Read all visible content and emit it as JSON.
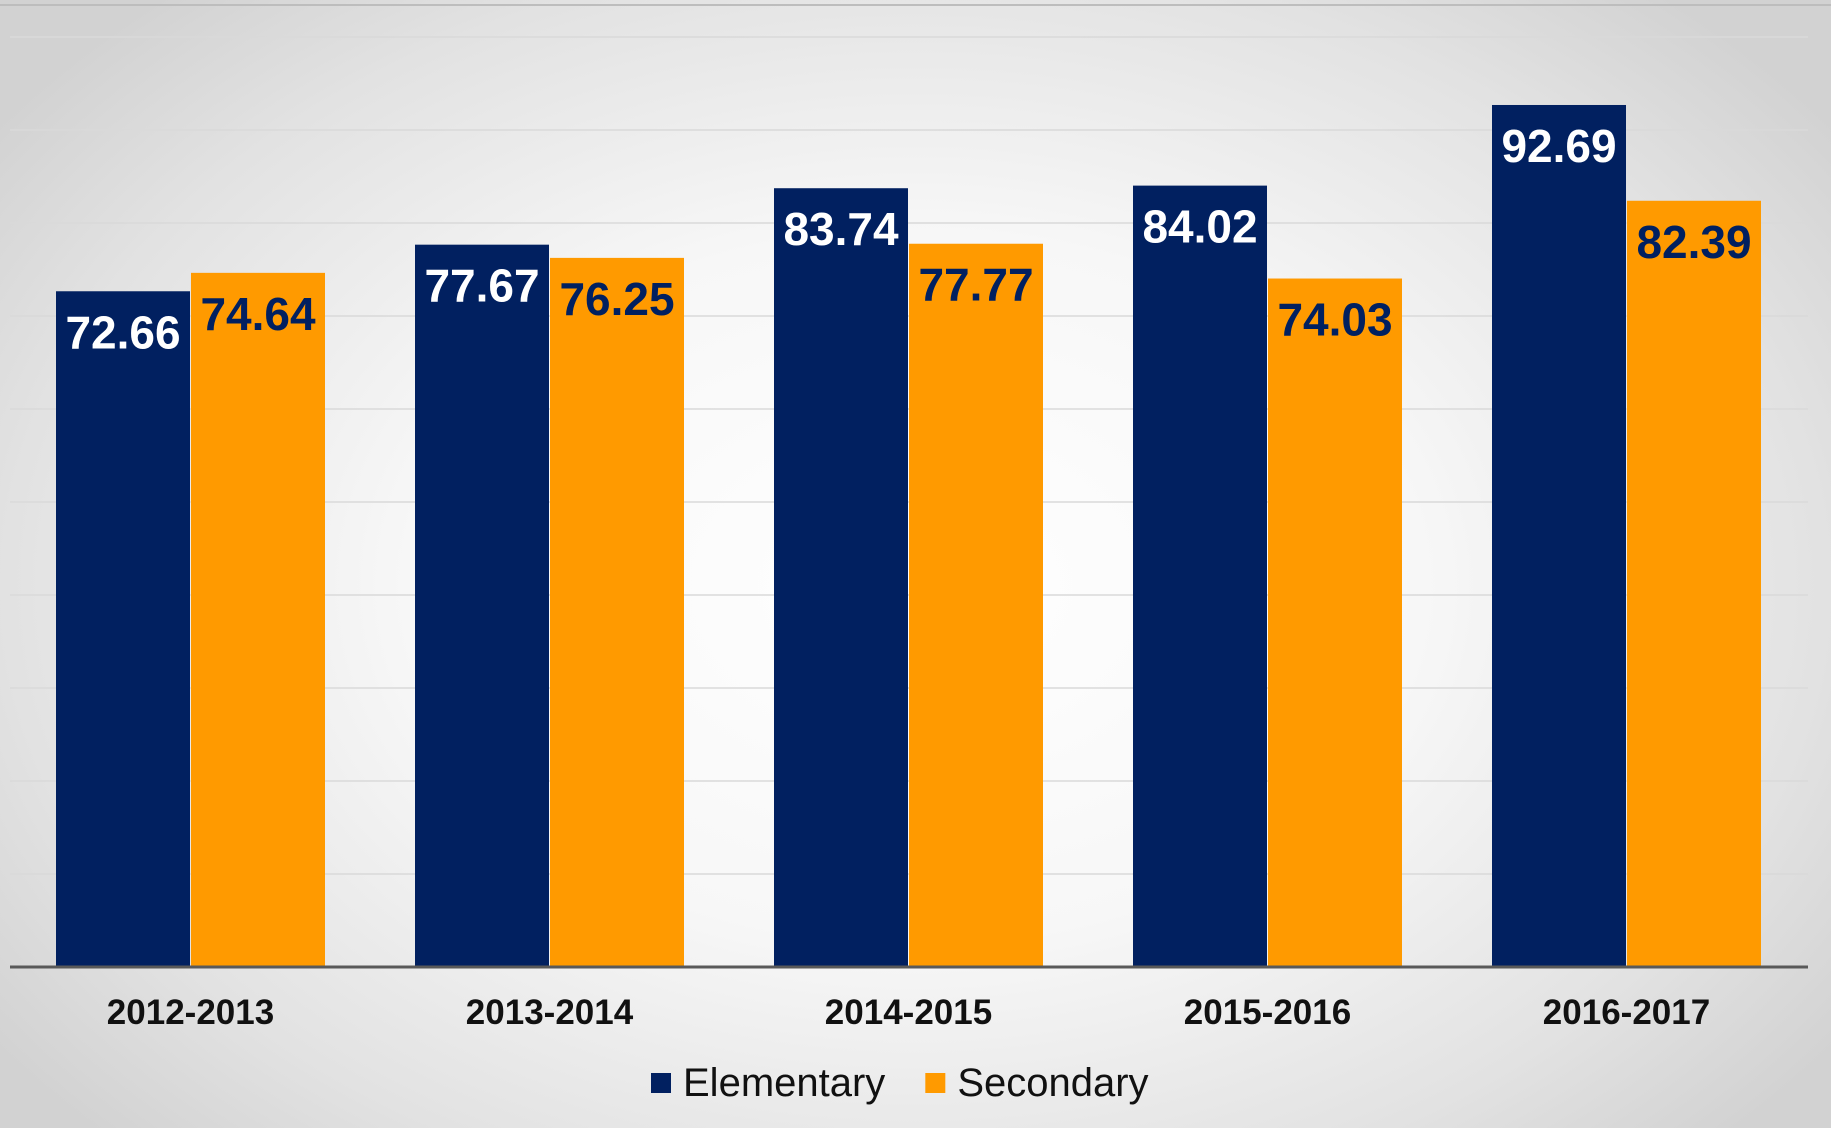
{
  "chart_data": {
    "type": "bar",
    "categories": [
      "2012-2013",
      "2013-2014",
      "2014-2015",
      "2015-2016",
      "2016-2017"
    ],
    "series": [
      {
        "name": "Elementary",
        "values": [
          72.66,
          77.67,
          83.74,
          84.02,
          92.69
        ],
        "color": "#012060",
        "label_color": "#ffffff"
      },
      {
        "name": "Secondary",
        "values": [
          74.64,
          76.25,
          77.77,
          74.03,
          82.39
        ],
        "color": "#ff9a00",
        "label_color": "#012060"
      }
    ],
    "ylim": [
      0,
      100
    ],
    "grid": true,
    "legend_position": "bottom-center",
    "data_labels": true
  }
}
